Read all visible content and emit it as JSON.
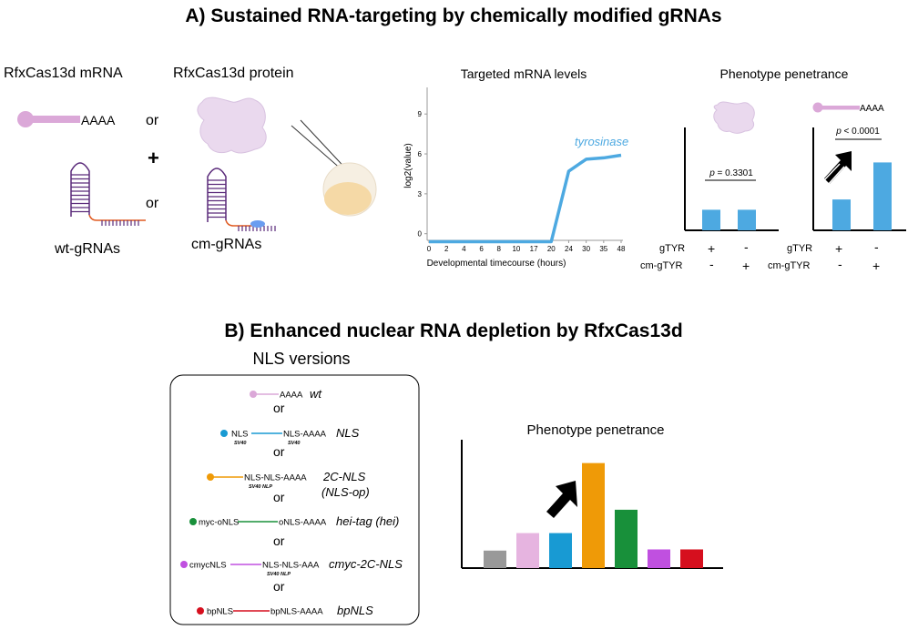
{
  "section_a": {
    "title": "A) Sustained RNA-targeting by chemically modified gRNAs",
    "mrna_label": "RfxCas13d mRNA",
    "protein_label": "RfxCas13d protein",
    "polya": "AAAA",
    "or": "or",
    "plus": "+",
    "wt_grnas": "wt-gRNAs",
    "cm_grnas": "cm-gRNAs"
  },
  "line_chart": {
    "title": "Targeted mRNA levels",
    "ylabel": "log2(value)",
    "xlabel": "Developmental timecourse (hours)",
    "series_label": "tyrosinase",
    "color": "#4da9e1"
  },
  "penetrance_a": {
    "title": "Phenotype penetrance",
    "left_p": "p = 0.3301",
    "right_p": "p < 0.0001",
    "polya": "AAAA",
    "row1_label": "gTYR",
    "row2_label": "cm-gTYR",
    "plus": "+",
    "minus": "-",
    "bar_color": "#4da9e1"
  },
  "section_b": {
    "title": "B) Enhanced nuclear RNA depletion by RfxCas13d",
    "nls_title": "NLS versions",
    "or": "or",
    "constructs": [
      {
        "color": "#dba8d8",
        "left": "",
        "left_sub": "",
        "right": "AAAA",
        "right_sub": "",
        "name": "wt"
      },
      {
        "color": "#189ad3",
        "left": "NLS",
        "left_sub": "SV40",
        "right": "NLS-AAAA",
        "right_sub": "SV40",
        "name": "NLS"
      },
      {
        "color": "#ef9a07",
        "left": "",
        "left_sub": "",
        "right": "NLS-NLS-AAAA",
        "right_sub": "SV40     NLP",
        "name": "2C-NLS",
        "name2": "(NLS-op)"
      },
      {
        "color": "#18903a",
        "left": "myc-oNLS",
        "left_sub": "",
        "right": "oNLS-AAAA",
        "right_sub": "",
        "name": "hei-tag (hei)"
      },
      {
        "color": "#c050e0",
        "left": "cmycNLS",
        "left_sub": "",
        "right": "NLS-NLS-AAA",
        "right_sub": "SV40     NLP",
        "name": "cmyc-2C-NLS"
      },
      {
        "color": "#d60f1e",
        "left": "bpNLS",
        "left_sub": "",
        "right": "bpNLS-AAAA",
        "right_sub": "",
        "name": "bpNLS"
      }
    ],
    "penetrance_title": "Phenotype penetrance"
  },
  "chart_data": [
    {
      "type": "line",
      "title": "Targeted mRNA levels",
      "xlabel": "Developmental timecourse (hours)",
      "ylabel": "log2(value)",
      "x_ticks": [
        "0",
        "2",
        "4",
        "6",
        "8",
        "10",
        "17",
        "20",
        "24",
        "30",
        "35",
        "48"
      ],
      "y_ticks": [
        0,
        3,
        6,
        9
      ],
      "ylim": [
        -0.5,
        11
      ],
      "series": [
        {
          "name": "tyrosinase",
          "x_index": [
            0,
            1,
            2,
            3,
            4,
            5,
            6,
            7,
            8,
            9,
            10,
            11
          ],
          "values": [
            -0.6,
            -0.6,
            -0.6,
            -0.6,
            -0.6,
            -0.6,
            -0.6,
            -0.6,
            4.7,
            5.6,
            5.7,
            5.9
          ]
        }
      ]
    },
    {
      "type": "bar",
      "title": "Phenotype penetrance",
      "categories": [
        "gTYR",
        "cm-gTYR"
      ],
      "values": [
        2.0,
        2.0
      ],
      "ylim": [
        0,
        10
      ],
      "annotation": "p = 0.3301"
    },
    {
      "type": "bar",
      "title": "Phenotype penetrance",
      "categories": [
        "gTYR",
        "cm-gTYR"
      ],
      "values": [
        3.0,
        6.6
      ],
      "ylim": [
        0,
        10
      ],
      "annotation": "p < 0.0001"
    },
    {
      "type": "bar",
      "title": "Phenotype penetrance",
      "categories": [
        "",
        "wt",
        "NLS",
        "2C-NLS",
        "hei-tag (hei)",
        "cmyc-2C-NLS",
        "bpNLS"
      ],
      "colors": [
        "#999999",
        "#e6b4e0",
        "#189ad3",
        "#ef9a07",
        "#18903a",
        "#c050e0",
        "#d60f1e"
      ],
      "values": [
        1.5,
        3.0,
        3.0,
        9.0,
        5.0,
        1.6,
        1.6
      ],
      "ylim": [
        0,
        11
      ]
    }
  ]
}
